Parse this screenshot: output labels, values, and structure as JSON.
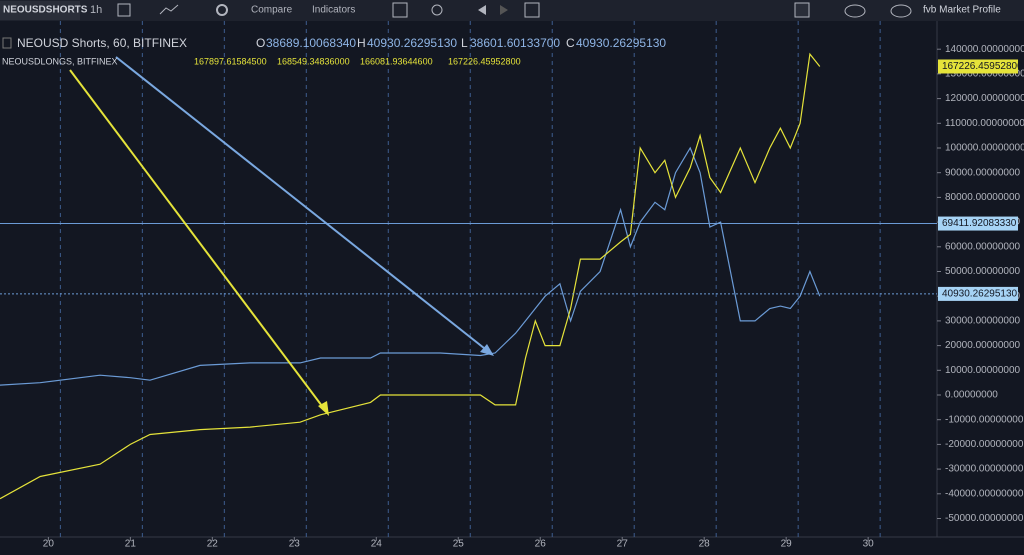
{
  "toolbar": {
    "symbol": "NEOUSDSHORTS",
    "interval": "1h",
    "compare": "Compare",
    "indicators": "Indicators",
    "profile": "fvb Market Profile"
  },
  "chart_data": {
    "type": "line",
    "legend": [
      {
        "title": "NEOUSD Shorts, 60, BITFINEX",
        "o_label": "O",
        "o": "38689.10068340",
        "h_label": "H",
        "h": "40930.26295130",
        "l_label": "L",
        "l": "38601.60133700",
        "c_label": "C",
        "c": "40930.26295130"
      },
      {
        "title": "NEOUSDLONGS, BITFINEX",
        "o": "167897.61584500",
        "h": "168549.34836000",
        "l": "166081.93644600",
        "c": "167226.45952800"
      }
    ],
    "x": [
      19.41,
      19.9,
      20.63,
      21.0,
      21.24,
      21.85,
      22.46,
      23.07,
      23.32,
      23.93,
      24.05,
      24.78,
      25.27,
      25.45,
      25.7,
      25.82,
      25.94,
      26.06,
      26.24,
      26.37,
      26.49,
      26.73,
      26.98,
      27.1,
      27.22,
      27.4,
      27.52,
      27.65,
      27.83,
      27.95,
      28.07,
      28.2,
      28.44,
      28.62,
      28.8,
      28.93,
      29.05,
      29.17,
      29.29,
      29.41
    ],
    "series": [
      {
        "name": "NEOUSD Shorts",
        "color": "#6b9bd6",
        "values": [
          4000,
          5000,
          8000,
          7000,
          6000,
          12000,
          13000,
          13000,
          15000,
          15000,
          17000,
          17000,
          16000,
          17000,
          25000,
          30000,
          35000,
          40000,
          45000,
          30000,
          42000,
          50000,
          75000,
          60000,
          70000,
          78000,
          75000,
          90000,
          100000,
          90000,
          68000,
          70000,
          30000,
          30000,
          35000,
          36000,
          35000,
          40000,
          50000,
          40000
        ]
      },
      {
        "name": "NEOUSDLONGS",
        "color": "#e5e33a",
        "values": [
          -42000,
          -33000,
          -28000,
          -20000,
          -16000,
          -14000,
          -13000,
          -11000,
          -8000,
          -3000,
          0,
          0,
          0,
          -4000,
          -4000,
          15000,
          30000,
          20000,
          20000,
          35000,
          55000,
          55000,
          62000,
          65000,
          100000,
          90000,
          95000,
          80000,
          92000,
          105000,
          88000,
          82000,
          100000,
          86000,
          100000,
          108000,
          100000,
          110000,
          138000,
          133000
        ]
      }
    ],
    "xlim": [
      19.41,
      30.84
    ],
    "xticks": [
      20,
      21,
      22,
      23,
      24,
      25,
      26,
      27,
      28,
      29,
      30
    ],
    "ylim": [
      -56680,
      147773
    ],
    "yticks": [
      {
        "value": 140000,
        "label": "140000.00000000"
      },
      {
        "value": 130000,
        "label": "130000.00000000"
      },
      {
        "value": 120000,
        "label": "120000.00000000"
      },
      {
        "value": 110000,
        "label": "110000.00000000"
      },
      {
        "value": 100000,
        "label": "100000.00000000"
      },
      {
        "value": 90000,
        "label": "90000.00000000"
      },
      {
        "value": 80000,
        "label": "80000.00000000"
      },
      {
        "value": 70000,
        "label": "70000.00000000"
      },
      {
        "value": 60000,
        "label": "60000.00000000"
      },
      {
        "value": 50000,
        "label": "50000.00000000"
      },
      {
        "value": 40000,
        "label": "40000.00000000"
      },
      {
        "value": 30000,
        "label": "30000.00000000"
      },
      {
        "value": 20000,
        "label": "20000.00000000"
      },
      {
        "value": 10000,
        "label": "10000.00000000"
      },
      {
        "value": 0,
        "label": "0.00000000"
      },
      {
        "value": -10000,
        "label": "-10000.00000000"
      },
      {
        "value": -20000,
        "label": "-20000.00000000"
      },
      {
        "value": -30000,
        "label": "-30000.00000000"
      },
      {
        "value": -40000,
        "label": "-40000.00000000"
      },
      {
        "value": -50000,
        "label": "-50000.00000000"
      }
    ],
    "price_lines": [
      {
        "value": 69411.9208333,
        "label": "69411.92083330",
        "style": "solid"
      },
      {
        "value": 40930.2629513,
        "label": "40930.26295130",
        "style": "dotted"
      }
    ]
  }
}
